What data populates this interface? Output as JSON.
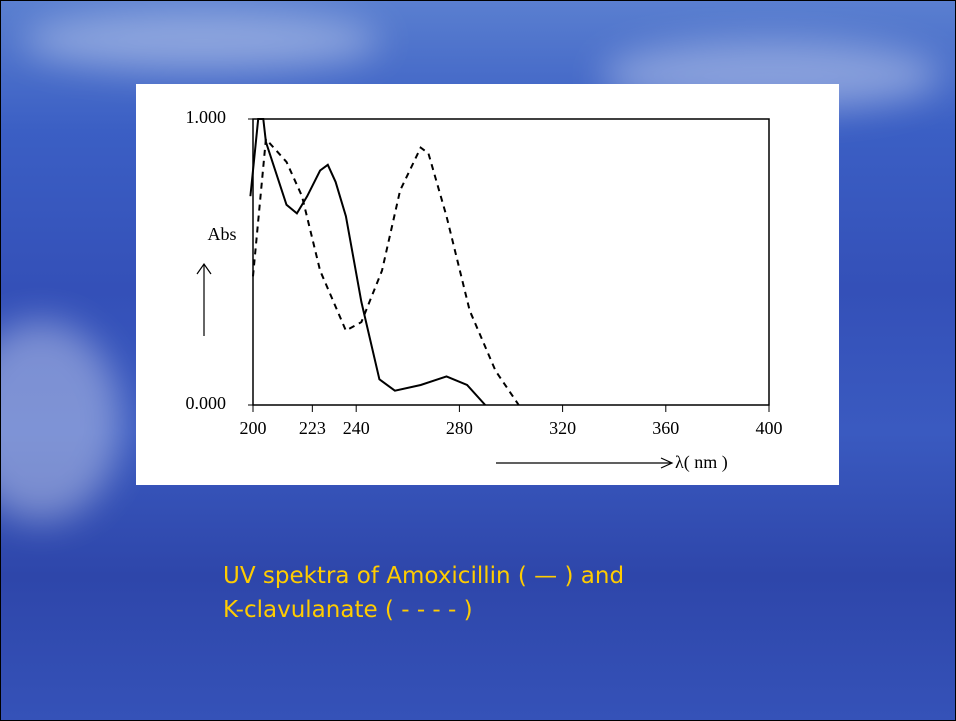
{
  "chart_data": {
    "type": "line",
    "y_label": "Abs",
    "x_label": "λ( nm )",
    "xlim": [
      200,
      400
    ],
    "xticks": [
      200,
      223,
      240,
      280,
      320,
      360,
      400
    ],
    "ylim": [
      0,
      1
    ],
    "yticks": [
      {
        "value": 0,
        "label": "0.000"
      },
      {
        "value": 1,
        "label": "1.000"
      }
    ],
    "series": [
      {
        "color": "#000000",
        "dash": "solid",
        "x": [
          199,
          202,
          204,
          205,
          213,
          217,
          221,
          226,
          229,
          232,
          236,
          242,
          249,
          255,
          265,
          275,
          283,
          290
        ],
        "values": [
          0.73,
          1.0,
          1.0,
          0.92,
          0.7,
          0.67,
          0.73,
          0.82,
          0.84,
          0.78,
          0.66,
          0.36,
          0.09,
          0.05,
          0.07,
          0.1,
          0.07,
          0.0
        ]
      },
      {
        "color": "#000000",
        "dash": "dashed",
        "x": [
          200,
          205,
          213,
          219,
          226,
          236,
          242,
          250,
          257,
          265,
          268,
          275,
          284,
          294,
          303
        ],
        "values": [
          0.45,
          0.93,
          0.85,
          0.73,
          0.47,
          0.26,
          0.29,
          0.47,
          0.75,
          0.9,
          0.88,
          0.66,
          0.33,
          0.12,
          0.0
        ]
      }
    ]
  },
  "caption": [
    "UV spektra of Amoxicillin ( — ) and",
    "K-clavulanate ( - - - - )"
  ]
}
